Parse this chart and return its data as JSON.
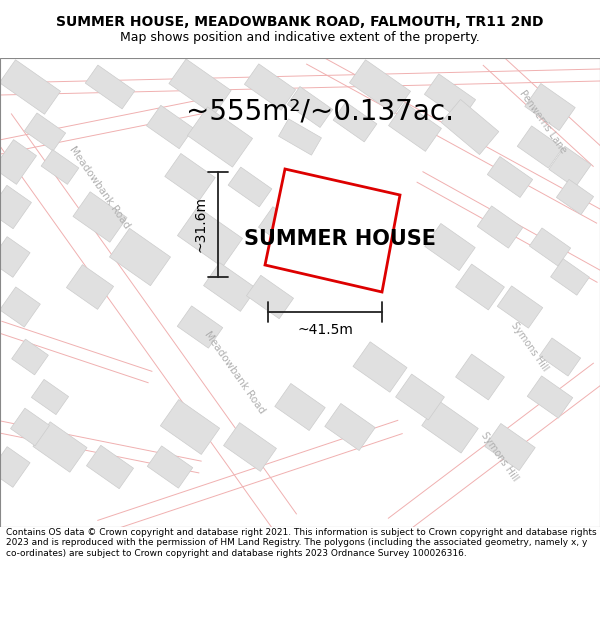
{
  "title": "SUMMER HOUSE, MEADOWBANK ROAD, FALMOUTH, TR11 2ND",
  "subtitle": "Map shows position and indicative extent of the property.",
  "area_label": "~555m²/~0.137ac.",
  "property_label": "SUMMER HOUSE",
  "dim_horizontal": "~41.5m",
  "dim_vertical": "~31.6m",
  "footer": "Contains OS data © Crown copyright and database right 2021. This information is subject to Crown copyright and database rights 2023 and is reproduced with the permission of HM Land Registry. The polygons (including the associated geometry, namely x, y co-ordinates) are subject to Crown copyright and database rights 2023 Ordnance Survey 100026316.",
  "bg_color": "#f8f8f8",
  "road_line_color": "#f0b0b0",
  "building_color": "#e0e0e0",
  "building_edge": "#cccccc",
  "property_outline": "#dd0000",
  "property_fill": "#ffffff",
  "dim_line_color": "#222222",
  "road_label_color": "#b0b0b0",
  "title_fontsize": 10,
  "subtitle_fontsize": 9,
  "area_fontsize": 20,
  "property_fontsize": 15,
  "dim_fontsize": 10,
  "footer_fontsize": 6.5,
  "road_lw": 0.8
}
